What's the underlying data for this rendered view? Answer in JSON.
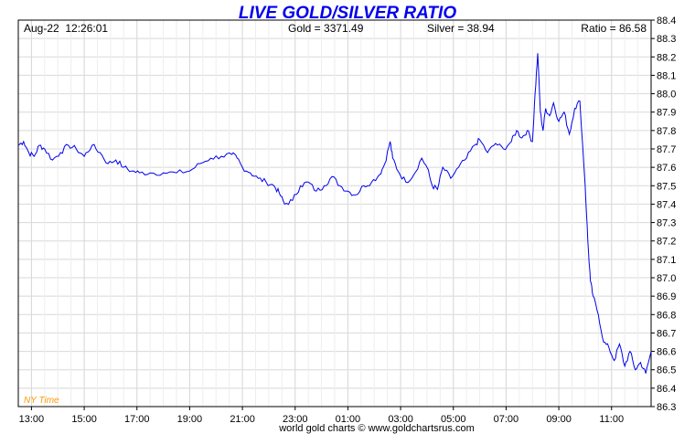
{
  "chart_data": {
    "type": "line",
    "title": "LIVE GOLD/SILVER RATIO",
    "info": {
      "datetime": "Aug-22  12:26:01",
      "gold": "Gold = 3371.49",
      "silver": "Silver = 38.94",
      "ratio": "Ratio = 86.58"
    },
    "timezone_label": "NY Time",
    "footer": "world gold charts © www.goldchartsrus.com",
    "x_ticks": [
      "13:00",
      "15:00",
      "17:00",
      "19:00",
      "21:00",
      "23:00",
      "01:00",
      "03:00",
      "05:00",
      "07:00",
      "09:00",
      "11:00"
    ],
    "x_tick_hours": [
      13,
      15,
      17,
      19,
      21,
      23,
      25,
      27,
      29,
      31,
      33,
      35
    ],
    "x_range": [
      12.5,
      36.5
    ],
    "y_ticks": [
      "86.3",
      "86.4",
      "86.5",
      "86.6",
      "86.7",
      "86.8",
      "86.9",
      "87.0",
      "87.1",
      "87.2",
      "87.3",
      "87.4",
      "87.5",
      "87.6",
      "87.7",
      "87.8",
      "87.9",
      "88.0",
      "88.1",
      "88.2",
      "88.3",
      "88.4"
    ],
    "ylim": [
      86.3,
      88.4
    ],
    "grid": true,
    "colors": {
      "line": "#0000ee",
      "title": "#0000ee",
      "timezone": "#ff9900",
      "grid": "#d8d8d8"
    },
    "series": [
      {
        "x": [
          12.5,
          12.7,
          12.9,
          13.1,
          13.3,
          13.5,
          13.8,
          14.1,
          14.4,
          14.7,
          15.0,
          15.3,
          15.6,
          15.9,
          16.2,
          16.5,
          16.8,
          17.1,
          17.5,
          18.0,
          18.5,
          19.0,
          19.4,
          19.8,
          20.2,
          20.6,
          20.8,
          21.0,
          21.3,
          21.6,
          21.9,
          22.2,
          22.4,
          22.6,
          22.9,
          23.2,
          23.5,
          23.8,
          24.1,
          24.4,
          24.7,
          25.0,
          25.3,
          25.6,
          25.9,
          26.2,
          26.4,
          26.6,
          26.7,
          26.9,
          27.2,
          27.5,
          27.8,
          28.0,
          28.2,
          28.4,
          28.6,
          28.9,
          29.2,
          29.5,
          29.8,
          30.0,
          30.3,
          30.6,
          30.9,
          31.2,
          31.4,
          31.6,
          31.8,
          32.0,
          32.1,
          32.2,
          32.3,
          32.4,
          32.5,
          32.65,
          32.8,
          33.0,
          33.2,
          33.4,
          33.6,
          33.8,
          34.0,
          34.1,
          34.2,
          34.3,
          34.5,
          34.7,
          34.9,
          35.1,
          35.3,
          35.5,
          35.7,
          35.9,
          36.1,
          36.3,
          36.5
        ],
        "values": [
          87.72,
          87.74,
          87.68,
          87.66,
          87.72,
          87.7,
          87.64,
          87.68,
          87.72,
          87.7,
          87.66,
          87.72,
          87.68,
          87.62,
          87.64,
          87.6,
          87.58,
          87.57,
          87.57,
          87.57,
          87.57,
          87.58,
          87.62,
          87.65,
          87.66,
          87.67,
          87.65,
          87.6,
          87.57,
          87.54,
          87.52,
          87.5,
          87.46,
          87.4,
          87.42,
          87.5,
          87.52,
          87.47,
          87.5,
          87.55,
          87.5,
          87.47,
          87.45,
          87.5,
          87.52,
          87.56,
          87.62,
          87.74,
          87.65,
          87.58,
          87.52,
          87.56,
          87.65,
          87.6,
          87.5,
          87.48,
          87.6,
          87.54,
          87.6,
          87.65,
          87.72,
          87.75,
          87.68,
          87.73,
          87.7,
          87.74,
          87.8,
          87.76,
          87.8,
          87.74,
          88.0,
          88.22,
          87.9,
          87.8,
          87.92,
          87.88,
          87.95,
          87.85,
          87.9,
          87.78,
          87.92,
          87.96,
          87.5,
          87.2,
          86.98,
          86.9,
          86.8,
          86.65,
          86.62,
          86.55,
          86.64,
          86.52,
          86.6,
          86.5,
          86.54,
          86.48,
          86.6
        ]
      }
    ]
  }
}
